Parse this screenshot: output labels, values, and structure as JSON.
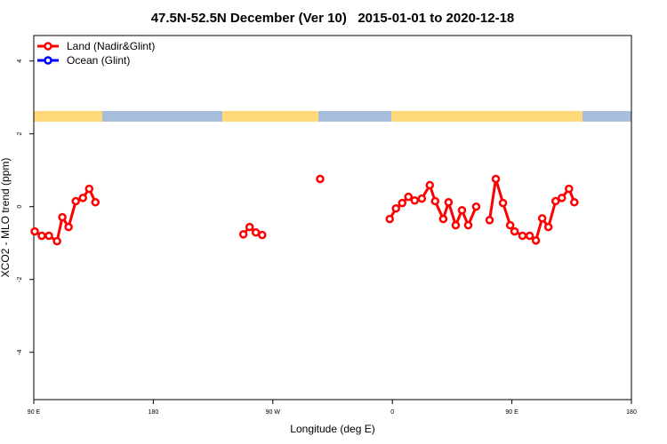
{
  "chart_data": {
    "type": "line",
    "title": "47.5N-52.5N December (Ver 10)   2015-01-01 to 2020-12-18",
    "x_label": "Longitude (deg E)",
    "y_label": "XCO2 - MLO trend (ppm)",
    "xlim": [
      -270,
      180
    ],
    "ylim": [
      -5.3,
      4.7
    ],
    "xticks": [
      {
        "value": -270,
        "label": "90 E"
      },
      {
        "value": -180,
        "label": "180"
      },
      {
        "value": -90,
        "label": "90 W"
      },
      0,
      {
        "value": 90,
        "label": "90 E"
      },
      180
    ],
    "yticks": [
      -4,
      -2,
      0,
      2,
      4
    ],
    "legend": "top-left",
    "series": [
      {
        "name": "Land (Nadir&Glint)",
        "color": "#ff0000",
        "x": [
          -269.3,
          -264,
          -258.6,
          -252.5,
          -248.5,
          -243.8,
          -238.4,
          -233,
          -228.3,
          -223.6,
          null,
          -112.2,
          -107.5,
          -102.8,
          -98,
          null,
          -54.4,
          null,
          -2,
          2.7,
          7.4,
          12.1,
          16.8,
          22.2,
          28.2,
          32.2,
          38.3,
          42.3,
          47.7,
          52.4,
          57.1,
          63.1,
          null,
          73.2,
          77.9,
          83.3,
          88.7,
          92,
          98,
          103.4,
          108.1,
          112.8,
          117.5,
          122.9,
          127.6,
          133,
          137
        ],
        "values": [
          -0.68,
          -0.8,
          -0.8,
          -0.95,
          -0.29,
          -0.56,
          0.15,
          0.24,
          0.49,
          0.12,
          null,
          -0.76,
          -0.56,
          -0.71,
          -0.78,
          null,
          0.76,
          null,
          -0.34,
          -0.05,
          0.1,
          0.27,
          0.17,
          0.22,
          0.59,
          0.15,
          -0.34,
          0.12,
          -0.51,
          -0.1,
          -0.51,
          0,
          null,
          -0.37,
          0.76,
          0.1,
          -0.51,
          -0.68,
          -0.8,
          -0.8,
          -0.93,
          -0.32,
          -0.56,
          0.15,
          0.24,
          0.49,
          0.12
        ]
      },
      {
        "name": "Ocean (Glint)",
        "color": "#0000ff",
        "x": [],
        "values": []
      }
    ]
  }
}
